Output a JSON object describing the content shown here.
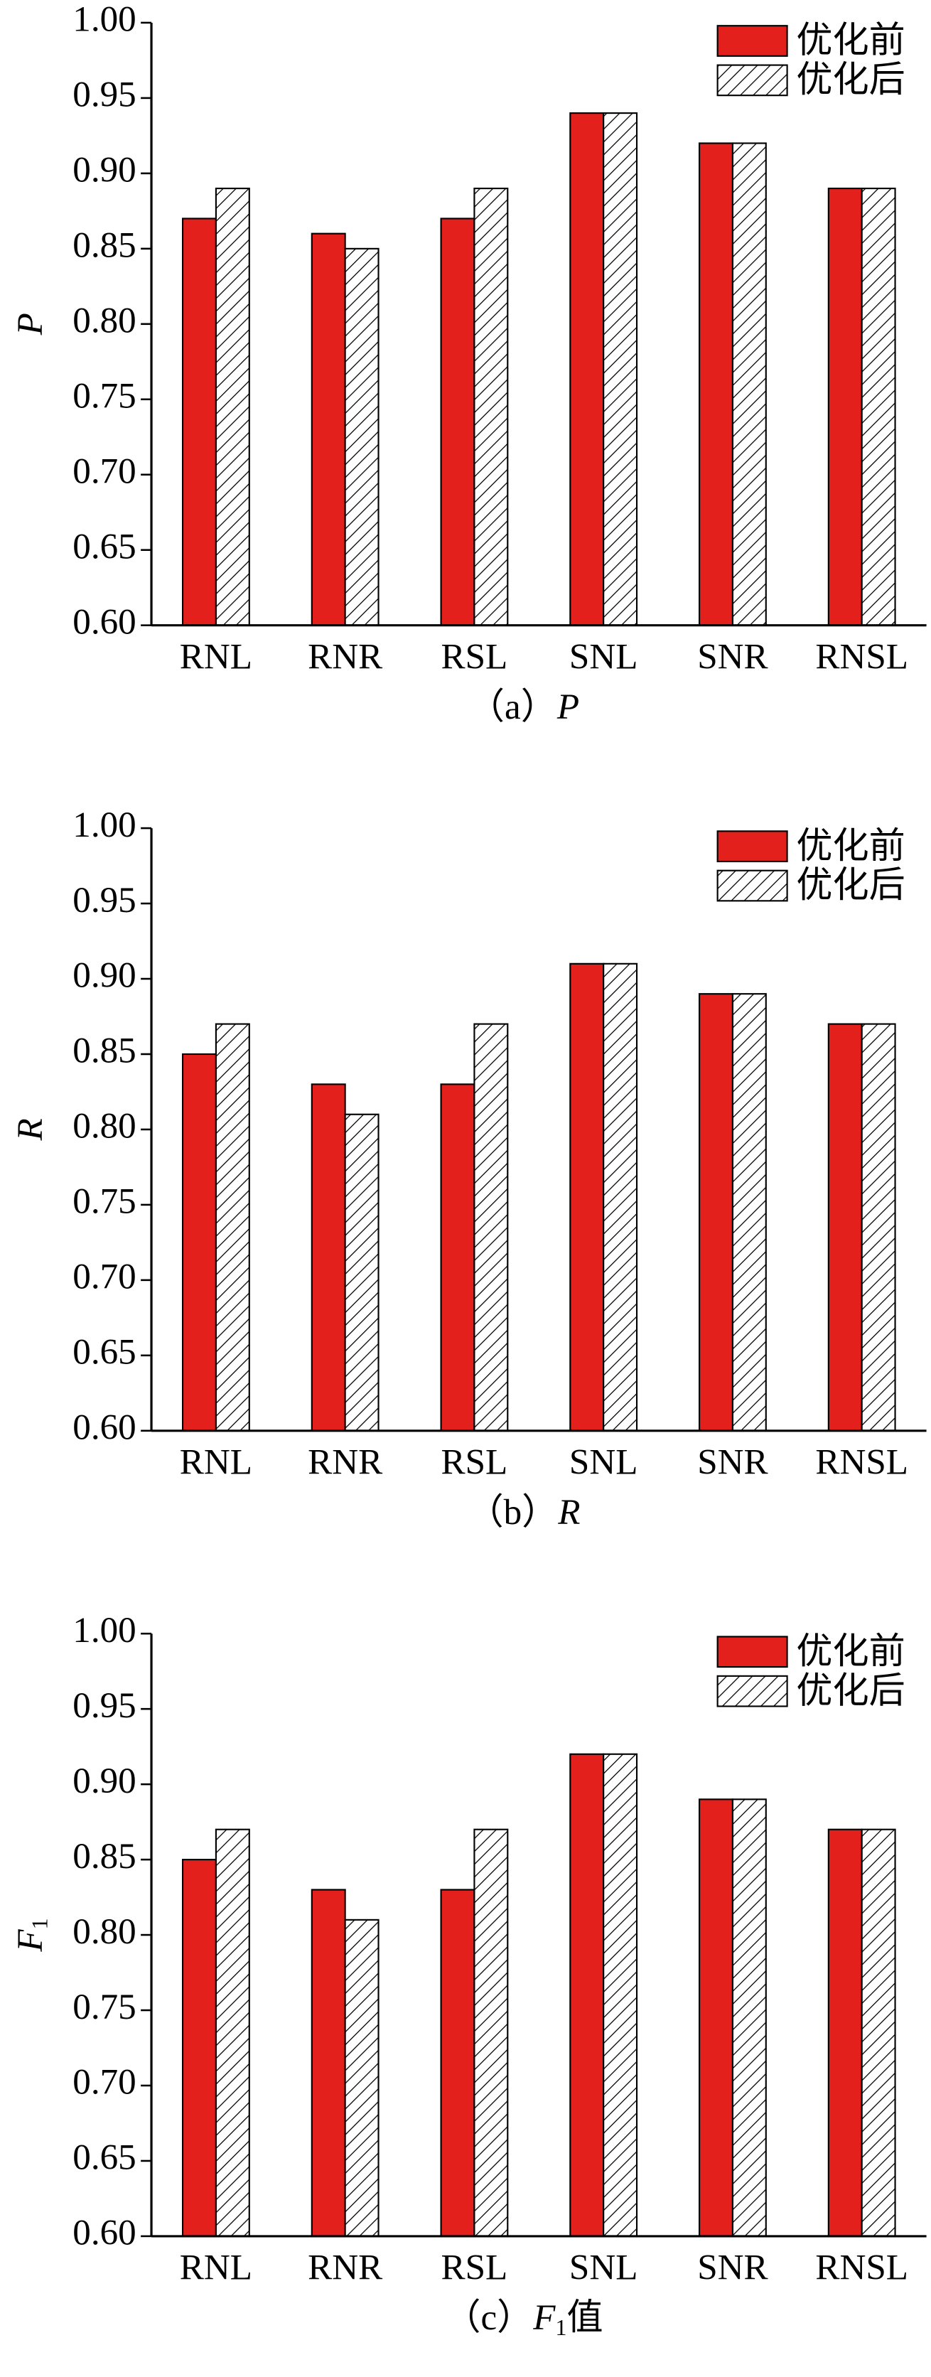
{
  "chart_data": [
    {
      "type": "bar",
      "y_label": {
        "symbol": "P"
      },
      "caption": {
        "label": "（a）",
        "symbol": "P"
      },
      "categories": [
        "RNL",
        "RNR",
        "RSL",
        "SNL",
        "SNR",
        "RNSL"
      ],
      "series": [
        {
          "name": "优化前",
          "color": "#e3201b",
          "values": [
            0.87,
            0.86,
            0.87,
            0.94,
            0.92,
            0.89
          ]
        },
        {
          "name": "优化后",
          "color": "hatch",
          "values": [
            0.89,
            0.85,
            0.89,
            0.94,
            0.92,
            0.89
          ]
        }
      ],
      "ylim": [
        0.6,
        1.0
      ],
      "yticks": [
        {
          "value": 0.6,
          "label": "0.60"
        },
        {
          "value": 0.65,
          "label": "0.65"
        },
        {
          "value": 0.7,
          "label": "0.70"
        },
        {
          "value": 0.75,
          "label": "0.75"
        },
        {
          "value": 0.8,
          "label": "0.80"
        },
        {
          "value": 0.85,
          "label": "0.85"
        },
        {
          "value": 0.9,
          "label": "0.90"
        },
        {
          "value": 0.95,
          "label": "0.95"
        },
        {
          "value": 1.0,
          "label": "1.00"
        }
      ],
      "legend": "upper right"
    },
    {
      "type": "bar",
      "y_label": {
        "symbol": "R"
      },
      "caption": {
        "label": "（b）",
        "symbol": "R"
      },
      "categories": [
        "RNL",
        "RNR",
        "RSL",
        "SNL",
        "SNR",
        "RNSL"
      ],
      "series": [
        {
          "name": "优化前",
          "color": "#e3201b",
          "values": [
            0.85,
            0.83,
            0.83,
            0.91,
            0.89,
            0.87
          ]
        },
        {
          "name": "优化后",
          "color": "hatch",
          "values": [
            0.87,
            0.81,
            0.87,
            0.91,
            0.89,
            0.87
          ]
        }
      ],
      "ylim": [
        0.6,
        1.0
      ],
      "yticks": [
        {
          "value": 0.6,
          "label": "0.60"
        },
        {
          "value": 0.65,
          "label": "0.65"
        },
        {
          "value": 0.7,
          "label": "0.70"
        },
        {
          "value": 0.75,
          "label": "0.75"
        },
        {
          "value": 0.8,
          "label": "0.80"
        },
        {
          "value": 0.85,
          "label": "0.85"
        },
        {
          "value": 0.9,
          "label": "0.90"
        },
        {
          "value": 0.95,
          "label": "0.95"
        },
        {
          "value": 1.0,
          "label": "1.00"
        }
      ],
      "legend": "upper right"
    },
    {
      "type": "bar",
      "y_label": {
        "symbol": "F",
        "subscript": "1"
      },
      "caption": {
        "label": "（c）",
        "symbol": "F",
        "subscript": "1",
        "suffix": "值"
      },
      "categories": [
        "RNL",
        "RNR",
        "RSL",
        "SNL",
        "SNR",
        "RNSL"
      ],
      "series": [
        {
          "name": "优化前",
          "color": "#e3201b",
          "values": [
            0.85,
            0.83,
            0.83,
            0.92,
            0.89,
            0.87
          ]
        },
        {
          "name": "优化后",
          "color": "hatch",
          "values": [
            0.87,
            0.81,
            0.87,
            0.92,
            0.89,
            0.87
          ]
        }
      ],
      "ylim": [
        0.6,
        1.0
      ],
      "yticks": [
        {
          "value": 0.6,
          "label": "0.60"
        },
        {
          "value": 0.65,
          "label": "0.65"
        },
        {
          "value": 0.7,
          "label": "0.70"
        },
        {
          "value": 0.75,
          "label": "0.75"
        },
        {
          "value": 0.8,
          "label": "0.80"
        },
        {
          "value": 0.85,
          "label": "0.85"
        },
        {
          "value": 0.9,
          "label": "0.90"
        },
        {
          "value": 0.95,
          "label": "0.95"
        },
        {
          "value": 1.0,
          "label": "1.00"
        }
      ],
      "legend": "upper right"
    }
  ]
}
